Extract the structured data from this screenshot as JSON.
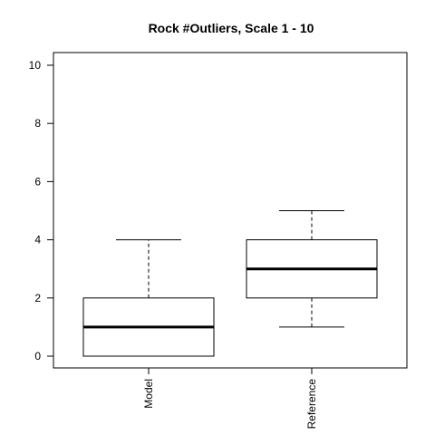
{
  "chart_data": {
    "type": "boxplot",
    "title": "Rock #Outliers, Scale 1 - 10",
    "xlabel": "",
    "ylabel": "",
    "ylim": [
      0,
      10
    ],
    "yticks": [
      0,
      2,
      4,
      6,
      8,
      10
    ],
    "categories": [
      "Model",
      "Reference"
    ],
    "boxes": [
      {
        "category": "Model",
        "whisker_low": 0,
        "q1": 0,
        "median": 1,
        "q3": 2,
        "whisker_high": 4
      },
      {
        "category": "Reference",
        "whisker_low": 1,
        "q1": 2,
        "median": 3,
        "q3": 4,
        "whisker_high": 5
      }
    ],
    "grid": false,
    "legend": "none"
  }
}
